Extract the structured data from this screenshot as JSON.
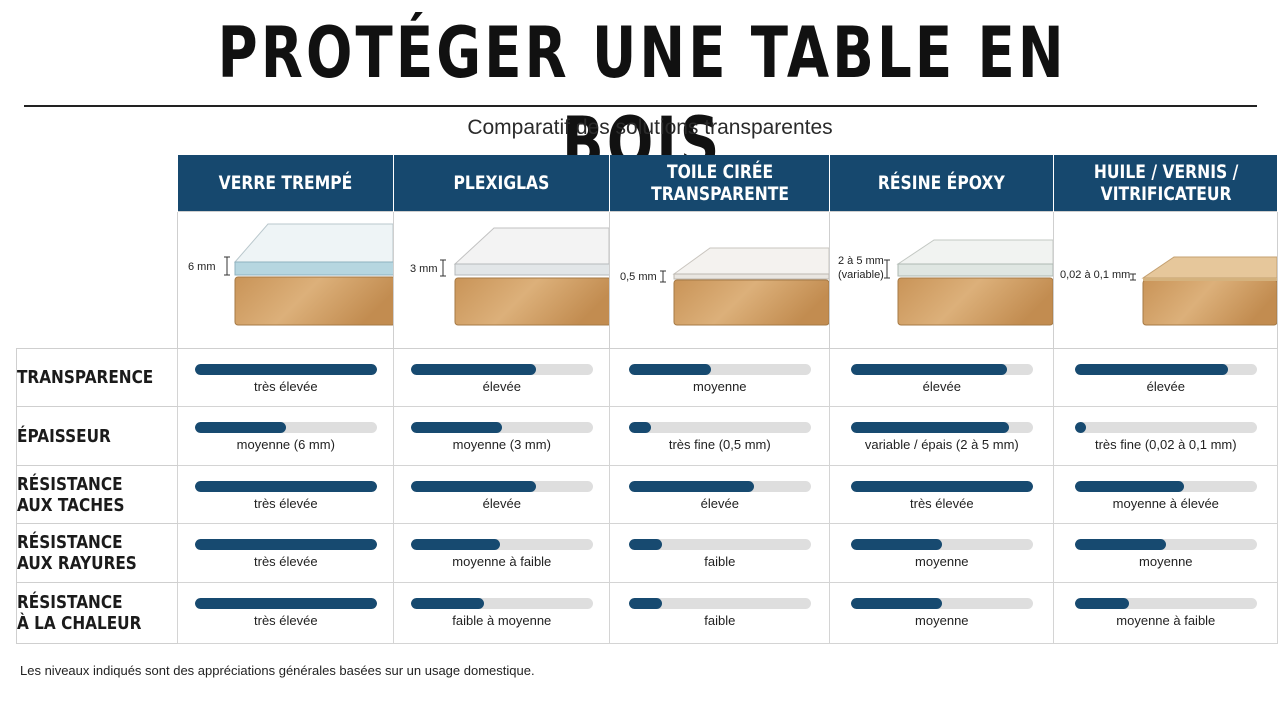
{
  "title": "PROTÉGER UNE TABLE EN BOIS",
  "subtitle": "Comparatif des solutions transparentes",
  "footnote": "Les niveaux indiqués sont des appréciations générales basées sur un usage domestique.",
  "colors": {
    "header": "#16486e",
    "bar": "#174a70",
    "track": "#dedede",
    "wood": "#d7aa73"
  },
  "columns": [
    {
      "name": "VERRE TREMPÉ",
      "dim": "6 mm",
      "dim2": ""
    },
    {
      "name": "PLEXIGLAS",
      "dim": "3 mm",
      "dim2": ""
    },
    {
      "name": "TOILE CIRÉE\nTRANSPARENTE",
      "dim": "0,5 mm",
      "dim2": ""
    },
    {
      "name": "RÉSINE ÉPOXY",
      "dim": "2 à 5 mm",
      "dim2": "(variable)"
    },
    {
      "name": "HUILE / VERNIS /\nVITRIFICATEUR",
      "dim": "0,02 à 0,1 mm",
      "dim2": ""
    }
  ],
  "rows": [
    {
      "label": "TRANSPARENCE",
      "cells": [
        {
          "level": 1.0,
          "text": "très élevée"
        },
        {
          "level": 0.69,
          "text": "élevée"
        },
        {
          "level": 0.45,
          "text": "moyenne"
        },
        {
          "level": 0.86,
          "text": "élevée"
        },
        {
          "level": 0.84,
          "text": "élevée"
        }
      ]
    },
    {
      "label": "ÉPAISSEUR",
      "cells": [
        {
          "level": 0.5,
          "text": "moyenne  (6 mm)"
        },
        {
          "level": 0.5,
          "text": "moyenne  (3 mm)"
        },
        {
          "level": 0.12,
          "text": "très fine (0,5 mm)"
        },
        {
          "level": 0.87,
          "text": "variable / épais  (2 à 5 mm)"
        },
        {
          "level": 0.06,
          "text": "très fine (0,02 à 0,1 mm)"
        }
      ]
    },
    {
      "label": "RÉSISTANCE\nAUX TACHES",
      "cells": [
        {
          "level": 1.0,
          "text": "très élevée"
        },
        {
          "level": 0.69,
          "text": "élevée"
        },
        {
          "level": 0.69,
          "text": "élevée"
        },
        {
          "level": 1.0,
          "text": "très élevée"
        },
        {
          "level": 0.6,
          "text": "moyenne à élevée"
        }
      ]
    },
    {
      "label": "RÉSISTANCE\nAUX RAYURES",
      "cells": [
        {
          "level": 1.0,
          "text": "très élevée"
        },
        {
          "level": 0.49,
          "text": "moyenne à faible"
        },
        {
          "level": 0.18,
          "text": "faible"
        },
        {
          "level": 0.5,
          "text": "moyenne"
        },
        {
          "level": 0.5,
          "text": "moyenne"
        }
      ]
    },
    {
      "label": "RÉSISTANCE\nÀ LA CHALEUR",
      "cells": [
        {
          "level": 1.0,
          "text": "très élevée"
        },
        {
          "level": 0.4,
          "text": "faible à moyenne"
        },
        {
          "level": 0.18,
          "text": "faible"
        },
        {
          "level": 0.5,
          "text": "moyenne"
        },
        {
          "level": 0.3,
          "text": "moyenne à faible"
        }
      ]
    }
  ]
}
